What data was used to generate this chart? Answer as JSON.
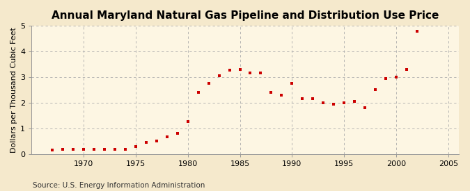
{
  "title": "Annual Maryland Natural Gas Pipeline and Distribution Use Price",
  "ylabel": "Dollars per Thousand Cubic Feet",
  "source": "Source: U.S. Energy Information Administration",
  "xlim": [
    1965,
    2006
  ],
  "ylim": [
    0,
    5
  ],
  "yticks": [
    0,
    1,
    2,
    3,
    4,
    5
  ],
  "xticks": [
    1970,
    1975,
    1980,
    1985,
    1990,
    1995,
    2000,
    2005
  ],
  "background_color": "#f5e9cc",
  "plot_bg_color": "#fdf6e3",
  "marker_color": "#cc0000",
  "years": [
    1967,
    1968,
    1969,
    1970,
    1971,
    1972,
    1973,
    1974,
    1975,
    1976,
    1977,
    1978,
    1979,
    1980,
    1981,
    1982,
    1983,
    1984,
    1985,
    1986,
    1987,
    1988,
    1989,
    1990,
    1991,
    1992,
    1993,
    1994,
    1995,
    1996,
    1997,
    1998,
    1999,
    2000,
    2001,
    2002
  ],
  "values": [
    0.15,
    0.17,
    0.17,
    0.17,
    0.17,
    0.17,
    0.18,
    0.18,
    0.28,
    0.45,
    0.5,
    0.67,
    0.8,
    1.25,
    2.4,
    2.75,
    3.05,
    3.25,
    3.3,
    3.15,
    3.15,
    2.4,
    2.3,
    2.75,
    2.15,
    2.15,
    2.0,
    1.95,
    2.0,
    2.05,
    1.8,
    2.5,
    2.95,
    3.0,
    3.28,
    4.77
  ],
  "title_fontsize": 11,
  "tick_fontsize": 8,
  "ylabel_fontsize": 8,
  "source_fontsize": 7.5
}
